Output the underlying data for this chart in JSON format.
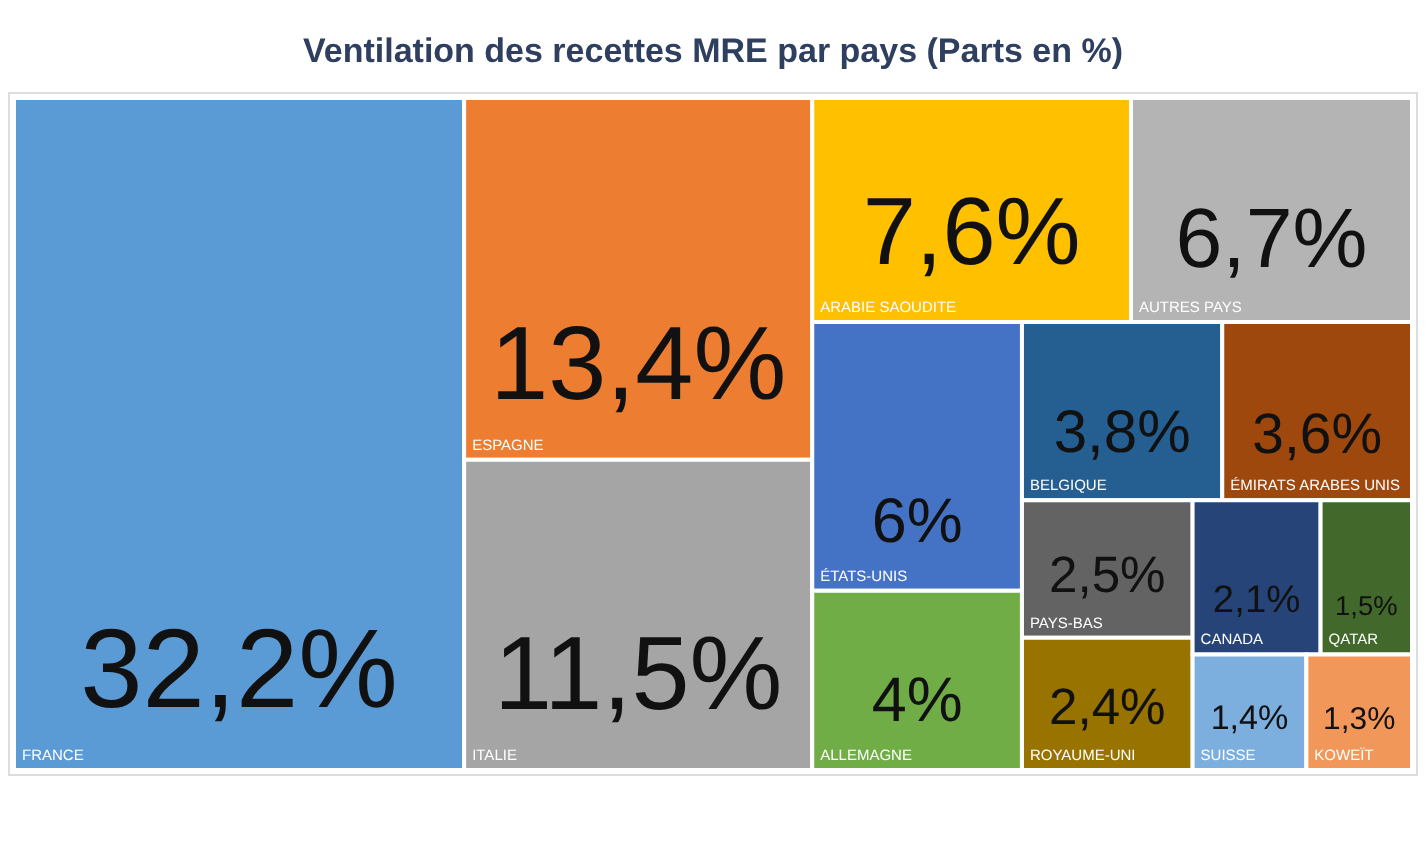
{
  "chart_data": {
    "type": "other",
    "title": "Ventilation des recettes MRE par pays (Parts en %)",
    "categories": [
      "FRANCE",
      "ESPAGNE",
      "ITALIE",
      "ARABIE SAOUDITE",
      "AUTRES PAYS",
      "ÉTATS-UNIS",
      "ALLEMAGNE",
      "BELGIQUE",
      "ÉMIRATS ARABES UNIS",
      "PAYS-BAS",
      "ROYAUME-UNI",
      "CANADA",
      "QATAR",
      "SUISSE",
      "KOWEÏT"
    ],
    "values": [
      32.2,
      13.4,
      11.5,
      7.6,
      6.7,
      6,
      4,
      3.8,
      3.6,
      2.5,
      2.4,
      2.1,
      1.5,
      1.4,
      1.3
    ],
    "value_labels": [
      "32,2%",
      "13,4%",
      "11,5%",
      "7,6%",
      "6,7%",
      "6%",
      "4%",
      "3,8%",
      "3,6%",
      "2,5%",
      "2,4%",
      "2,1%",
      "1,5%",
      "1,4%",
      "1,3%"
    ],
    "colors": [
      "#5b9bd5",
      "#ed7d31",
      "#a5a5a5",
      "#ffc000",
      "#b4b4b4",
      "#4472c4",
      "#70ad47",
      "#255e91",
      "#9e480e",
      "#636363",
      "#997300",
      "#264478",
      "#43682b",
      "#7cafdd",
      "#f1975a"
    ]
  }
}
